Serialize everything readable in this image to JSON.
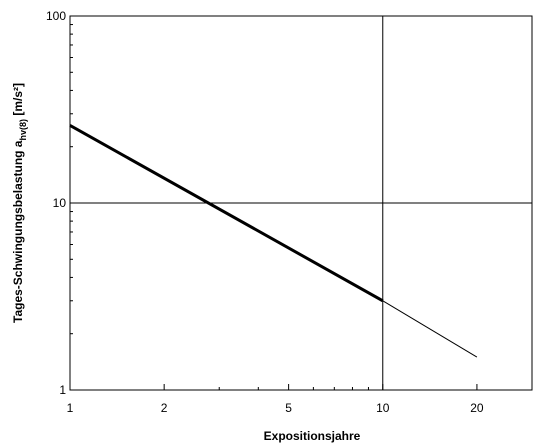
{
  "chart_data": {
    "type": "line",
    "xscale": "log",
    "yscale": "log",
    "xlim": [
      1,
      30
    ],
    "ylim": [
      1,
      100
    ],
    "xticks": [
      1,
      2,
      5,
      10,
      20
    ],
    "xtick_labels": [
      "1",
      "2",
      "5",
      "10",
      "20"
    ],
    "yticks": [
      1,
      10,
      100
    ],
    "ytick_labels": [
      "1",
      "10",
      "100"
    ],
    "xlabel": "Expositionsjahre",
    "ylabel_main": "Tages-Schwingungsbelastung a",
    "ylabel_sub": "hv(8)",
    "ylabel_unit": " [m/s²]",
    "grid": {
      "major_x": [
        10
      ],
      "major_y": [
        10
      ]
    },
    "series": [
      {
        "style": "thick",
        "x": [
          1,
          10
        ],
        "y": [
          26,
          3.0
        ]
      },
      {
        "style": "thin",
        "x": [
          10,
          20
        ],
        "y": [
          3.0,
          1.5
        ]
      }
    ],
    "colors": {
      "line": "#000000",
      "grid": "#000000",
      "background": "#ffffff"
    }
  }
}
